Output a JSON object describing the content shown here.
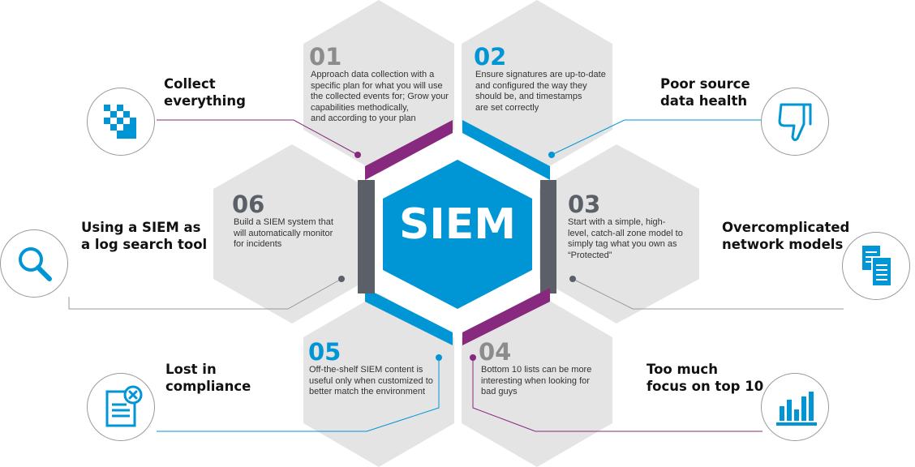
{
  "center": {
    "label": "SIEM"
  },
  "items": [
    {
      "id": "01",
      "num": "01",
      "lines": [
        "Approach data collection  with a",
        "specific plan for what you will use",
        "the collected events for; Grow your",
        "capabilities  methodically,",
        "and according to your plan"
      ],
      "label_lines": [
        "Collect",
        "everything"
      ],
      "icon": "pixel-grid-icon"
    },
    {
      "id": "02",
      "num": "02",
      "lines": [
        "Ensure signatures are up-to-date",
        "and configured the way they",
        "should be, and timestamps",
        "are set correctly"
      ],
      "label_lines": [
        "Poor source",
        "data health"
      ],
      "icon": "thumbs-down-icon"
    },
    {
      "id": "03",
      "num": "03",
      "lines": [
        "Start with a simple, high-",
        "level,  catch-all zone model to",
        "simply tag what you own as",
        "“Protected”"
      ],
      "label_lines": [
        "Overcomplicated",
        "network models"
      ],
      "icon": "documents-icon"
    },
    {
      "id": "04",
      "num": "04",
      "lines": [
        "Bottom 10 lists  can be more",
        "interesting when looking for",
        "bad guys"
      ],
      "label_lines": [
        "Too much",
        "focus on top 10"
      ],
      "icon": "bar-chart-icon"
    },
    {
      "id": "05",
      "num": "05",
      "lines": [
        "Off-the-shelf SIEM content is",
        "useful only when customized to",
        "better match the environment"
      ],
      "label_lines": [
        "Lost in",
        "compliance"
      ],
      "icon": "document-x-icon"
    },
    {
      "id": "06",
      "num": "06",
      "lines": [
        "Build a SIEM system that",
        "will automatically monitor",
        "for incidents"
      ],
      "label_lines": [
        "Using a SIEM  as",
        "a log search tool"
      ],
      "icon": "magnifier-icon"
    }
  ],
  "colors": {
    "blue": "#0096d6",
    "purple": "#87297e",
    "dark_gray": "#5b6068",
    "light_gray": "#e4e4e4",
    "number_gray": "#8c8c8c",
    "line_gray": "#999999"
  }
}
